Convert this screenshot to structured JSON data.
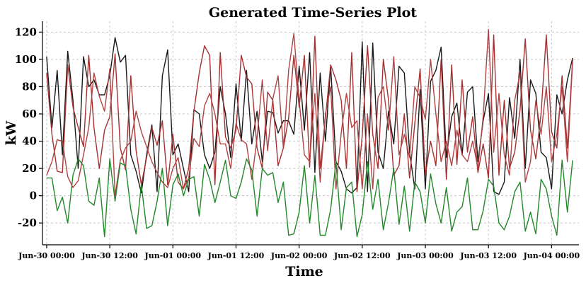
{
  "chart_data": {
    "type": "line",
    "title": "Generated Time-Series Plot",
    "xlabel": "Time",
    "ylabel": "kW",
    "grid": true,
    "legend": "none",
    "ylim": [
      -36,
      128
    ],
    "yticks": [
      -20,
      0,
      20,
      40,
      60,
      80,
      100,
      120
    ],
    "xlim": [
      -0.8,
      101.2
    ],
    "xticks": [
      {
        "x": 0,
        "label": "Jun-30 00:00"
      },
      {
        "x": 12,
        "label": "Jun-30 12:00"
      },
      {
        "x": 24,
        "label": "Jun-01 00:00"
      },
      {
        "x": 36,
        "label": "Jun-01 12:00"
      },
      {
        "x": 48,
        "label": "Jun-02 00:00"
      },
      {
        "x": 60,
        "label": "Jun-02 12:00"
      },
      {
        "x": 72,
        "label": "Jun-03 00:00"
      },
      {
        "x": 84,
        "label": "Jun-03 12:00"
      },
      {
        "x": 96,
        "label": "Jun-04 00:00"
      }
    ],
    "x_note": "hours since first timestamp",
    "series": [
      {
        "color": "#1a1a1a",
        "values": [
          102,
          50,
          92,
          30,
          106,
          70,
          20,
          102,
          80,
          85,
          74,
          74,
          88,
          116,
          98,
          103,
          30,
          18,
          2,
          30,
          52,
          3,
          88,
          107,
          30,
          38,
          20,
          3,
          63,
          60,
          30,
          20,
          32,
          80,
          60,
          28,
          82,
          40,
          92,
          38,
          62,
          25,
          62,
          61,
          46,
          55,
          55,
          45,
          95,
          48,
          105,
          17,
          90,
          40,
          95,
          25,
          18,
          5,
          2,
          6,
          113,
          3,
          112,
          32,
          20,
          62,
          38,
          95,
          90,
          32,
          5,
          78,
          5,
          84,
          92,
          109,
          28,
          58,
          68,
          30,
          76,
          80,
          25,
          55,
          75,
          3,
          1,
          10,
          72,
          42,
          100,
          20,
          85,
          75,
          32,
          28,
          5,
          74,
          60,
          85,
          101
        ]
      },
      {
        "color": "#a53030",
        "values": [
          90,
          45,
          18,
          17,
          96,
          65,
          50,
          36,
          103,
          50,
          20,
          48,
          58,
          104,
          35,
          19,
          88,
          33,
          8,
          28,
          50,
          37,
          55,
          8,
          45,
          10,
          5,
          20,
          62,
          90,
          110,
          103,
          8,
          105,
          43,
          35,
          48,
          103,
          87,
          82,
          35,
          20,
          76,
          70,
          22,
          35,
          57,
          103,
          65,
          103,
          21,
          117,
          20,
          57,
          96,
          85,
          70,
          20,
          105,
          3,
          44,
          110,
          45,
          20,
          100,
          70,
          15,
          22,
          60,
          13,
          53,
          93,
          15,
          40,
          22,
          100,
          12,
          96,
          23,
          85,
          32,
          58,
          17,
          38,
          13,
          118,
          15,
          70,
          20,
          32,
          63,
          115,
          48,
          27,
          60,
          118,
          47,
          35,
          88,
          35,
          100
        ]
      },
      {
        "color": "#b04343",
        "values": [
          15,
          25,
          41,
          40,
          14,
          6,
          11,
          30,
          50,
          90,
          73,
          62,
          93,
          0,
          26,
          35,
          40,
          62,
          47,
          36,
          25,
          17,
          10,
          6,
          20,
          28,
          5,
          13,
          42,
          36,
          66,
          75,
          60,
          38,
          38,
          20,
          53,
          41,
          38,
          12,
          42,
          85,
          33,
          71,
          88,
          35,
          92,
          119,
          70,
          30,
          25,
          75,
          10,
          60,
          80,
          5,
          46,
          75,
          50,
          55,
          5,
          60,
          5,
          72,
          80,
          48,
          102,
          30,
          45,
          28,
          80,
          72,
          56,
          100,
          60,
          25,
          40,
          22,
          48,
          30,
          25,
          40,
          20,
          58,
          122,
          32,
          75,
          30,
          15,
          70,
          90,
          10,
          25,
          70,
          45,
          80,
          25,
          45,
          80,
          25,
          99
        ]
      },
      {
        "color": "#22882a",
        "values": [
          13,
          13,
          -11,
          -1,
          -20,
          15,
          27,
          22,
          -4,
          -7,
          13,
          -30,
          27,
          -4,
          24,
          22,
          -10,
          -28,
          8,
          -24,
          -22,
          -4,
          20,
          -22,
          8,
          16,
          0,
          12,
          14,
          -15,
          23,
          12,
          -5,
          10,
          26,
          0,
          -2,
          10,
          27,
          19,
          -15,
          20,
          15,
          17,
          -5,
          10,
          -29,
          -28,
          -12,
          22,
          -20,
          15,
          -29,
          -29,
          -10,
          25,
          -25,
          6,
          10,
          -30,
          -14,
          25,
          -10,
          12,
          -25,
          -5,
          20,
          -21,
          7,
          -26,
          10,
          3,
          -20,
          16,
          -6,
          -20,
          6,
          -26,
          -12,
          -8,
          13,
          -25,
          -25,
          -11,
          12,
          7,
          -20,
          -25,
          -15,
          3,
          10,
          -26,
          -12,
          -28,
          12,
          5,
          -15,
          -29,
          26,
          -12,
          26
        ]
      }
    ]
  }
}
